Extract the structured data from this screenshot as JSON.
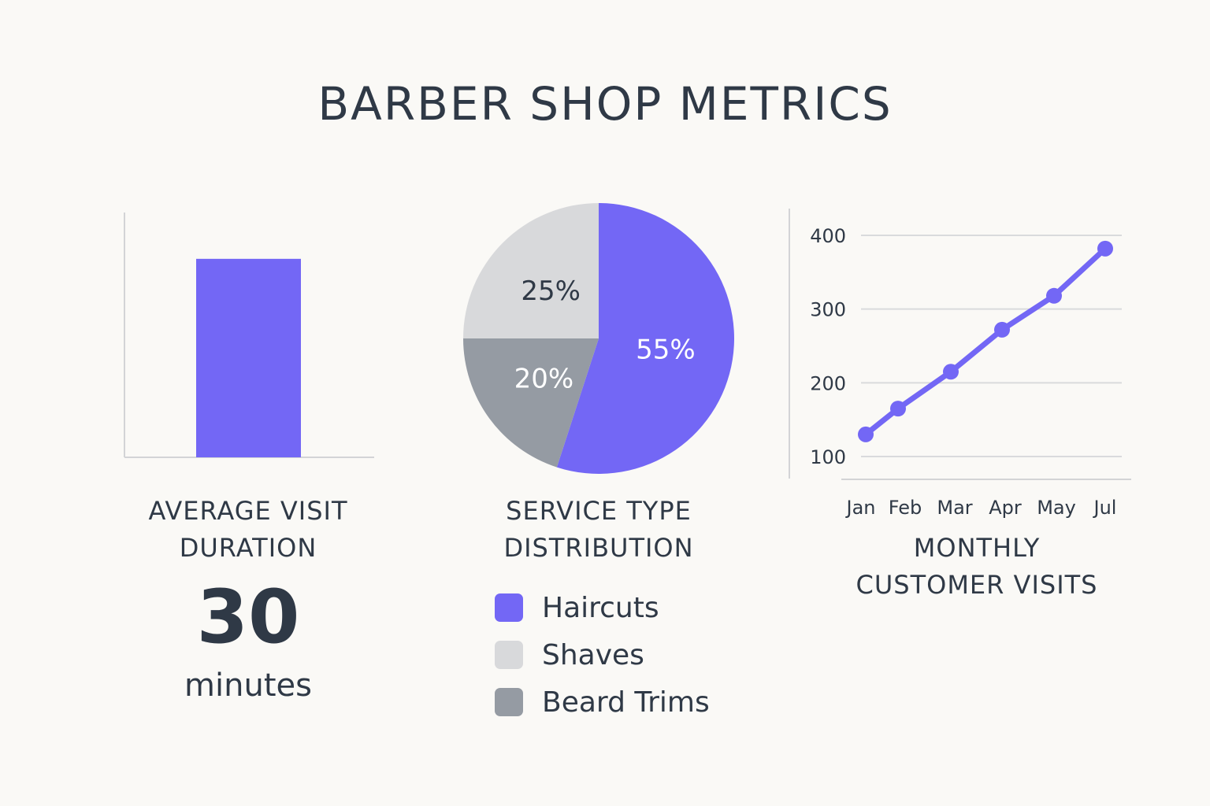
{
  "title": "BARBER SHOP METRICS",
  "chart_data": [
    {
      "type": "bar",
      "title_lines": [
        "AVERAGE VISIT",
        "DURATION"
      ],
      "categories": [
        ""
      ],
      "values": [
        30
      ],
      "display_value": "30",
      "unit": "minutes",
      "ylim": [
        0,
        37
      ],
      "grid": false,
      "color": "#7367f5"
    },
    {
      "type": "pie",
      "title_lines": [
        "SERVICE TYPE",
        "DISTRIBUTION"
      ],
      "slices": [
        {
          "name": "Haircuts",
          "value": 55,
          "label": "55%",
          "color": "#7367f5",
          "label_color": "#ffffff"
        },
        {
          "name": "Beard Trims",
          "value": 20,
          "label": "20%",
          "color": "#959ba3",
          "label_color": "#ffffff"
        },
        {
          "name": "Shaves",
          "value": 25,
          "label": "25%",
          "color": "#d8d9db",
          "label_color": "#2f3946"
        }
      ],
      "legend": [
        {
          "name": "Haircuts",
          "color": "#7367f5"
        },
        {
          "name": "Shaves",
          "color": "#d8d9db"
        },
        {
          "name": "Beard Trims",
          "color": "#959ba3"
        }
      ],
      "legend_position": "bottom"
    },
    {
      "type": "line",
      "title_lines": [
        "MONTHLY",
        "CUSTOMER VISITS"
      ],
      "x": [
        "Jan",
        "Feb",
        "Mar",
        "Apr",
        "May",
        "Jul"
      ],
      "series": [
        {
          "values": [
            130,
            165,
            215,
            272,
            318,
            382
          ]
        }
      ],
      "yticks": [
        100,
        200,
        300,
        400
      ],
      "ylim": [
        70,
        400
      ],
      "grid": true,
      "color": "#7367f5"
    }
  ]
}
